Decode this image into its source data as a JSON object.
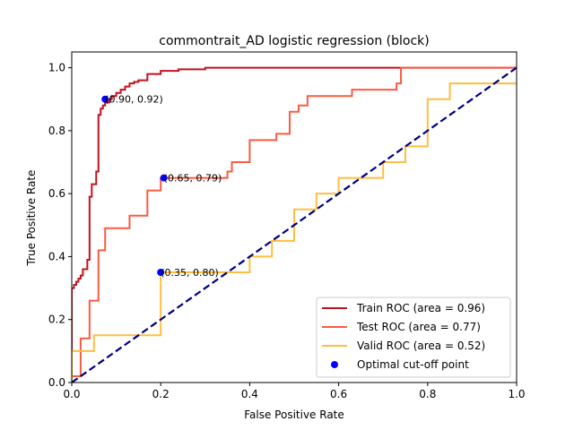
{
  "chart_data": {
    "type": "line",
    "title": "commontrait_AD logistic regression (block)",
    "xlabel": "False Positive Rate",
    "ylabel": "True Positive Rate",
    "xlim": [
      0.0,
      1.0
    ],
    "ylim": [
      0.0,
      1.05
    ],
    "xticks": [
      "0.0",
      "0.2",
      "0.4",
      "0.6",
      "0.8",
      "1.0"
    ],
    "yticks": [
      "0.0",
      "0.2",
      "0.4",
      "0.6",
      "0.8",
      "1.0"
    ],
    "grid": false,
    "legend_position": "lower-right",
    "series": [
      {
        "name": "Train ROC (area = 0.96)",
        "color": "#c1121f",
        "x": [
          0.0,
          0.0,
          0.005,
          0.005,
          0.01,
          0.01,
          0.015,
          0.015,
          0.02,
          0.02,
          0.025,
          0.025,
          0.035,
          0.035,
          0.04,
          0.04,
          0.045,
          0.045,
          0.055,
          0.055,
          0.06,
          0.06,
          0.065,
          0.065,
          0.07,
          0.07,
          0.075,
          0.075,
          0.085,
          0.085,
          0.09,
          0.09,
          0.1,
          0.1,
          0.11,
          0.11,
          0.12,
          0.12,
          0.13,
          0.13,
          0.14,
          0.14,
          0.15,
          0.15,
          0.17,
          0.17,
          0.2,
          0.2,
          0.24,
          0.24,
          0.3,
          0.3,
          0.6,
          1.0
        ],
        "y": [
          0.0,
          0.3,
          0.3,
          0.31,
          0.31,
          0.32,
          0.32,
          0.33,
          0.33,
          0.34,
          0.34,
          0.36,
          0.36,
          0.39,
          0.39,
          0.59,
          0.59,
          0.63,
          0.63,
          0.67,
          0.67,
          0.85,
          0.85,
          0.87,
          0.87,
          0.88,
          0.88,
          0.89,
          0.89,
          0.9,
          0.9,
          0.91,
          0.91,
          0.92,
          0.92,
          0.93,
          0.93,
          0.94,
          0.94,
          0.95,
          0.95,
          0.955,
          0.955,
          0.96,
          0.96,
          0.98,
          0.98,
          0.99,
          0.99,
          0.995,
          0.995,
          1.0,
          1.0,
          1.0
        ]
      },
      {
        "name": "Test ROC (area = 0.77)",
        "color": "#fb5b41",
        "x": [
          0.0,
          0.0,
          0.02,
          0.02,
          0.04,
          0.04,
          0.06,
          0.06,
          0.075,
          0.075,
          0.13,
          0.13,
          0.17,
          0.17,
          0.2,
          0.2,
          0.35,
          0.35,
          0.36,
          0.36,
          0.4,
          0.4,
          0.46,
          0.46,
          0.49,
          0.49,
          0.51,
          0.51,
          0.53,
          0.53,
          0.63,
          0.63,
          0.73,
          0.73,
          0.74,
          0.74,
          1.0
        ],
        "y": [
          0.0,
          0.02,
          0.02,
          0.14,
          0.14,
          0.26,
          0.26,
          0.42,
          0.42,
          0.49,
          0.49,
          0.53,
          0.53,
          0.61,
          0.61,
          0.65,
          0.65,
          0.67,
          0.67,
          0.7,
          0.7,
          0.77,
          0.77,
          0.79,
          0.79,
          0.86,
          0.86,
          0.88,
          0.88,
          0.91,
          0.91,
          0.93,
          0.93,
          0.95,
          0.95,
          1.0,
          1.0
        ]
      },
      {
        "name": "Valid ROC (area = 0.52)",
        "color": "#fdbf41",
        "x": [
          0.0,
          0.0,
          0.05,
          0.05,
          0.2,
          0.2,
          0.4,
          0.4,
          0.45,
          0.45,
          0.5,
          0.5,
          0.55,
          0.55,
          0.6,
          0.6,
          0.7,
          0.7,
          0.75,
          0.75,
          0.8,
          0.8,
          0.85,
          0.85,
          1.0
        ],
        "y": [
          0.0,
          0.1,
          0.1,
          0.15,
          0.15,
          0.35,
          0.35,
          0.4,
          0.4,
          0.45,
          0.45,
          0.55,
          0.55,
          0.6,
          0.6,
          0.65,
          0.65,
          0.7,
          0.7,
          0.75,
          0.75,
          0.9,
          0.9,
          0.95,
          0.95
        ]
      }
    ],
    "diagonal": {
      "color": "#000080",
      "x": [
        0.0,
        1.0
      ],
      "y": [
        0.0,
        1.0
      ]
    },
    "optimal_points": {
      "name": "Optimal cut-off point",
      "color": "#0000ff",
      "points": [
        {
          "x": 0.075,
          "y": 0.9,
          "label": "(0.90, 0.92)"
        },
        {
          "x": 0.207,
          "y": 0.65,
          "label": "(0.65, 0.79)"
        },
        {
          "x": 0.2,
          "y": 0.35,
          "label": "(0.35, 0.80)"
        }
      ]
    }
  }
}
